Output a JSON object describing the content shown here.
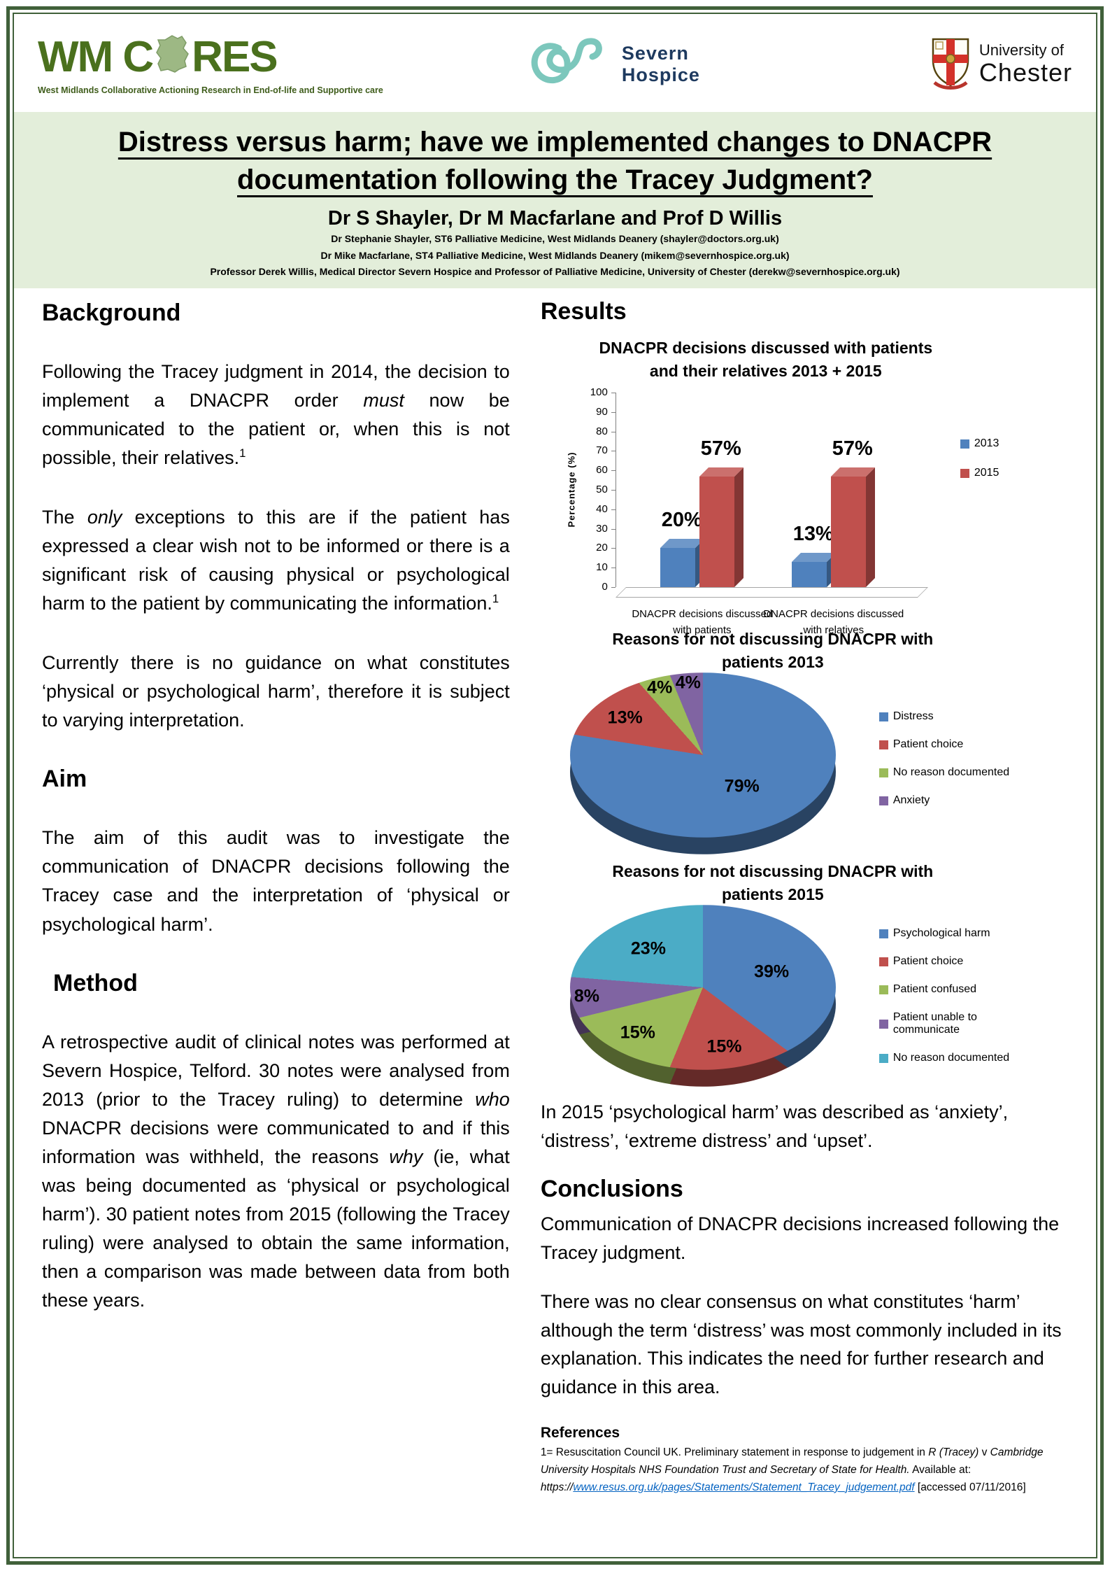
{
  "header": {
    "wm_cores": {
      "word_pre": "WM C",
      "word_post": "RES",
      "tagline": "West Midlands Collaborative Actioning Research in End-of-life and Supportive care"
    },
    "severn": {
      "line1": "Severn",
      "line2": "Hospice"
    },
    "chester": {
      "line1": "University of",
      "line2": "Chester"
    }
  },
  "title_block": {
    "title_line1": "Distress versus harm; have we implemented changes to DNACPR",
    "title_line2": "documentation following the Tracey Judgment?",
    "authors": "Dr S Shayler, Dr M Macfarlane and Prof D Willis",
    "affiliations": [
      "Dr Stephanie Shayler, ST6 Palliative Medicine, West Midlands Deanery (shayler@doctors.org.uk)",
      "Dr Mike Macfarlane, ST4 Palliative Medicine, West Midlands Deanery (mikem@severnhospice.org.uk)",
      "Professor Derek Willis, Medical Director Severn Hospice and Professor of Palliative Medicine, University of Chester (derekw@severnhospice.org.uk)"
    ]
  },
  "left": {
    "background_heading": "Background",
    "background_paras": [
      [
        {
          "t": "Following the Tracey judgment in 2014, the decision to implement a DNACPR order "
        },
        {
          "t": "must",
          "i": true
        },
        {
          "t": " now be communicated to the patient or, when this is not possible, their relatives."
        },
        {
          "t": "1",
          "sup": true
        }
      ],
      [
        {
          "t": "The "
        },
        {
          "t": "only",
          "i": true
        },
        {
          "t": " exceptions to this are if the patient has expressed a clear wish not to be informed or there is a significant risk of causing physical or psychological harm to the patient by communicating the information."
        },
        {
          "t": "1",
          "sup": true
        }
      ],
      [
        {
          "t": "Currently there is no guidance on what constitutes ‘physical or psychological harm’, therefore it is subject to varying interpretation."
        }
      ]
    ],
    "aim_heading": "Aim",
    "aim_para": [
      {
        "t": "The aim of this audit was to investigate the communication of DNACPR decisions following the Tracey case and the interpretation of ‘physical or psychological harm’."
      }
    ],
    "method_heading": "Method",
    "method_para": [
      {
        "t": "A retrospective audit of clinical notes was performed at Severn Hospice, Telford. 30 notes were analysed from 2013 (prior to the Tracey ruling) to determine "
      },
      {
        "t": "who",
        "i": true
      },
      {
        "t": " DNACPR decisions were communicated to and if this information was withheld, the reasons "
      },
      {
        "t": "why",
        "i": true
      },
      {
        "t": " (ie, what was being documented as ‘physical or psychological harm’). 30 patient notes from 2015 (following the Tracey ruling) were analysed to obtain the same information, then a comparison was made between data from both these years."
      }
    ]
  },
  "right": {
    "results_heading": "Results",
    "post_pie_text": [
      {
        "t": "In 2015 ‘psychological harm’ was described as ‘anxiety’, ‘distress’, ‘extreme distress’ and ‘upset’."
      }
    ],
    "conclusions_heading": "Conclusions",
    "conclusion_paras": [
      [
        {
          "t": "Communication of DNACPR decisions increased following the Tracey judgment."
        }
      ],
      [
        {
          "t": "There was no clear consensus on what constitutes ‘harm’ although the term ‘distress’ was most commonly included in its explanation. This indicates the need for further research and guidance in this area."
        }
      ]
    ],
    "references_heading": "References",
    "reference_segments": [
      {
        "t": "1= Resuscitation Council UK. Preliminary statement in response to judgement in "
      },
      {
        "t": "R (Tracey)",
        "i": true
      },
      {
        "t": " v "
      },
      {
        "t": "Cambridge University Hospitals NHS Foundation Trust and Secretary of State for Health.",
        "i": true
      },
      {
        "t": " Available at: "
      },
      {
        "t": "https://",
        "i": true
      },
      {
        "t": "www.resus.org.uk/pages/Statements/Statement_Tracey_judgement.pdf",
        "link": true,
        "i": true
      },
      {
        "t": "  [accessed 07/11/2016]"
      }
    ]
  },
  "chart_data": [
    {
      "type": "bar",
      "title_lines": [
        "DNACPR decisions discussed with patients",
        "and their relatives 2013 + 2015"
      ],
      "ylabel": "Percentage (%)",
      "ylim": [
        0,
        100
      ],
      "yticks": [
        0,
        10,
        20,
        30,
        40,
        50,
        60,
        70,
        80,
        90,
        100
      ],
      "categories": [
        [
          "DNACPR decisions discussed",
          "with patients"
        ],
        [
          "DNACPR decisions discussed",
          "with relatives"
        ]
      ],
      "series": [
        {
          "name": "2013",
          "color": "#4f81bd",
          "values": [
            20,
            13
          ],
          "labels": [
            "20%",
            "13%"
          ]
        },
        {
          "name": "2015",
          "color": "#c0504d",
          "values": [
            57,
            57
          ],
          "labels": [
            "57%",
            "57%"
          ]
        }
      ],
      "legend_position": "right",
      "grid": false
    },
    {
      "type": "pie",
      "title_lines": [
        "Reasons for not discussing DNACPR with",
        "patients 2013"
      ],
      "slices": [
        {
          "label": "Distress",
          "value": 79,
          "pct_label": "79%",
          "color": "#4f81bd"
        },
        {
          "label": "Patient choice",
          "value": 13,
          "pct_label": "13%",
          "color": "#c0504d"
        },
        {
          "label": "No reason documented",
          "value": 4,
          "pct_label": "4%",
          "color": "#9bbb59"
        },
        {
          "label": "Anxiety",
          "value": 4,
          "pct_label": "4%",
          "color": "#8064a2"
        }
      ],
      "legend_position": "right"
    },
    {
      "type": "pie",
      "title_lines": [
        "Reasons for not discussing DNACPR with",
        "patients 2015"
      ],
      "slices": [
        {
          "label": "Psychological harm",
          "value": 39,
          "pct_label": "39%",
          "color": "#4f81bd"
        },
        {
          "label": "Patient choice",
          "value": 15,
          "pct_label": "15%",
          "color": "#c0504d"
        },
        {
          "label": "Patient confused",
          "value": 15,
          "pct_label": "15%",
          "color": "#9bbb59"
        },
        {
          "label": "Patient unable to communicate",
          "value": 8,
          "pct_label": "8%",
          "color": "#8064a2"
        },
        {
          "label": "No reason documented",
          "value": 23,
          "pct_label": "23%",
          "color": "#4bacc6"
        }
      ],
      "legend_position": "right"
    }
  ]
}
